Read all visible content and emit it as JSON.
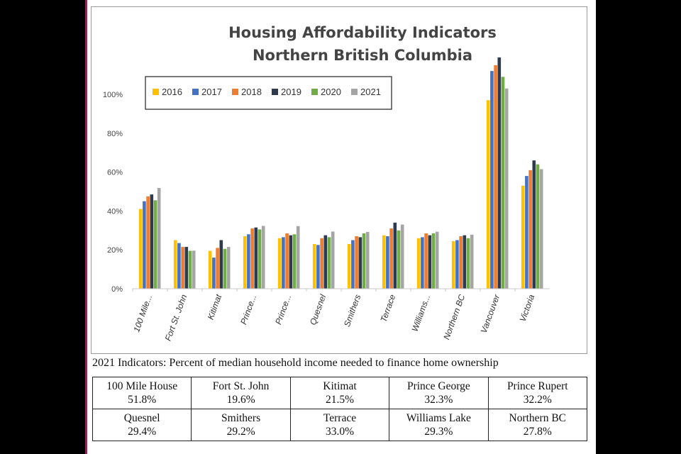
{
  "chart_data": {
    "type": "bar",
    "title": "Housing Affordability Indicators",
    "subtitle": "Northern British Columbia",
    "categories": [
      "100 Mile...",
      "Fort St. John",
      "Kitimat",
      "Prince...",
      "Prince...",
      "Quesnel",
      "Smithers",
      "Terrace",
      "Williams...",
      "Northern BC",
      "Vancouver",
      "Victoria"
    ],
    "series": [
      {
        "name": "2016",
        "color": "#FFC000",
        "values": [
          41,
          25,
          19.5,
          27,
          26,
          23,
          23,
          27.5,
          26,
          24.5,
          97,
          53
        ]
      },
      {
        "name": "2017",
        "color": "#4472C4",
        "values": [
          45,
          23.5,
          16,
          28,
          26.5,
          22.5,
          25,
          27,
          26.5,
          25,
          112,
          58
        ]
      },
      {
        "name": "2018",
        "color": "#ED7D31",
        "values": [
          47.5,
          21.5,
          21,
          31,
          28.5,
          26,
          27,
          31,
          28.5,
          27,
          115,
          61
        ]
      },
      {
        "name": "2019",
        "color": "#2E3A4E",
        "values": [
          48.5,
          21.5,
          25,
          31.5,
          27.5,
          27.5,
          26.5,
          34,
          27.5,
          27.5,
          119,
          66
        ]
      },
      {
        "name": "2020",
        "color": "#70AD47",
        "values": [
          45.5,
          19.5,
          20.5,
          30.5,
          28,
          26.5,
          28.5,
          30,
          28.5,
          26,
          109,
          64
        ]
      },
      {
        "name": "2021",
        "color": "#A5A5A5",
        "values": [
          51.8,
          19.6,
          21.5,
          32.3,
          32.2,
          29.4,
          29.2,
          33.0,
          29.3,
          27.8,
          103,
          61.5
        ]
      }
    ],
    "yticks": [
      "0%",
      "20%",
      "40%",
      "60%",
      "80%",
      "100%"
    ],
    "ylim": [
      0,
      120
    ],
    "grid": false,
    "legend_position": "top-left"
  },
  "caption": "2021 Indicators:  Percent of median household income needed to finance home ownership",
  "table": [
    [
      {
        "name": "100 Mile House",
        "value": "51.8%"
      },
      {
        "name": "Fort St. John",
        "value": "19.6%"
      },
      {
        "name": "Kitimat",
        "value": "21.5%"
      },
      {
        "name": "Prince George",
        "value": "32.3%"
      },
      {
        "name": "Prince Rupert",
        "value": "32.2%"
      }
    ],
    [
      {
        "name": "Quesnel",
        "value": "29.4%"
      },
      {
        "name": "Smithers",
        "value": "29.2%"
      },
      {
        "name": "Terrace",
        "value": "33.0%"
      },
      {
        "name": "Williams Lake",
        "value": "29.3%"
      },
      {
        "name": "Northern BC",
        "value": "27.8%"
      }
    ]
  ]
}
